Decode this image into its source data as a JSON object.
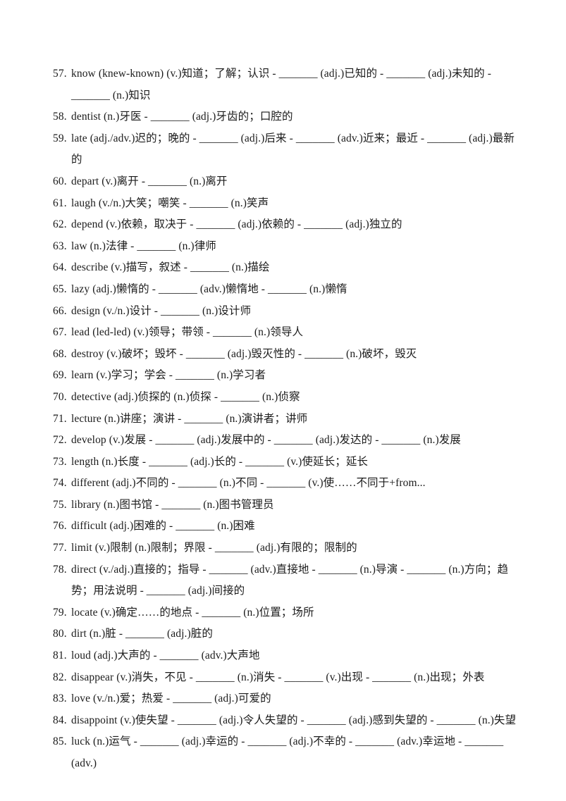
{
  "page": {
    "background_color": "#ffffff",
    "text_color": "#1b1b1b"
  },
  "worksheet": {
    "items": [
      {
        "num": "57.",
        "text": "know (knew-known) (v.)知道；了解；认识 - _______ (adj.)已知的 - _______ (adj.)未知的 - _______ (n.)知识"
      },
      {
        "num": "58.",
        "text": "dentist (n.)牙医 - _______ (adj.)牙齿的；口腔的"
      },
      {
        "num": "59.",
        "text": "late (adj./adv.)迟的；晚的 - _______ (adj.)后来 - _______ (adv.)近来；最近 - _______ (adj.)最新的"
      },
      {
        "num": "60.",
        "text": "depart (v.)离开 - _______ (n.)离开"
      },
      {
        "num": "61.",
        "text": "laugh (v./n.)大笑；嘲笑 - _______ (n.)笑声"
      },
      {
        "num": "62.",
        "text": "depend (v.)依赖，取决于 - _______ (adj.)依赖的 - _______ (adj.)独立的"
      },
      {
        "num": "63.",
        "text": "law (n.)法律 - _______ (n.)律师"
      },
      {
        "num": "64.",
        "text": "describe (v.)描写，叙述 - _______ (n.)描绘"
      },
      {
        "num": "65.",
        "text": "lazy (adj.)懒惰的 - _______ (adv.)懒惰地 - _______ (n.)懒惰"
      },
      {
        "num": "66.",
        "text": "design (v./n.)设计 - _______ (n.)设计师"
      },
      {
        "num": "67.",
        "text": "lead (led-led) (v.)领导；带领 - _______ (n.)领导人"
      },
      {
        "num": "68.",
        "text": "destroy (v.)破坏；毁坏 - _______ (adj.)毁灭性的 - _______ (n.)破坏，毁灭"
      },
      {
        "num": "69.",
        "text": "learn (v.)学习；学会 - _______ (n.)学习者"
      },
      {
        "num": "70.",
        "text": "detective (adj.)侦探的 (n.)侦探 - _______ (n.)侦察"
      },
      {
        "num": "71.",
        "text": "lecture (n.)讲座；演讲 - _______ (n.)演讲者；讲师"
      },
      {
        "num": "72.",
        "text": "develop (v.)发展 - _______ (adj.)发展中的 - _______ (adj.)发达的 - _______ (n.)发展"
      },
      {
        "num": "73.",
        "text": "length (n.)长度 - _______ (adj.)长的 - _______ (v.)使延长；延长"
      },
      {
        "num": "74.",
        "text": "different (adj.)不同的 - _______ (n.)不同 - _______ (v.)使……不同于+from..."
      },
      {
        "num": "75.",
        "text": "library (n.)图书馆 - _______ (n.)图书管理员"
      },
      {
        "num": "76.",
        "text": "difficult (adj.)困难的 - _______ (n.)困难"
      },
      {
        "num": "77.",
        "text": "limit (v.)限制 (n.)限制；界限 - _______ (adj.)有限的；限制的"
      },
      {
        "num": "78.",
        "text": "direct (v./adj.)直接的；指导 - _______ (adv.)直接地 - _______ (n.)导演 - _______ (n.)方向；趋势；用法说明 - _______ (adj.)间接的"
      },
      {
        "num": "79.",
        "text": "locate (v.)确定……的地点 - _______ (n.)位置；场所"
      },
      {
        "num": "80.",
        "text": "dirt (n.)脏 - _______ (adj.)脏的"
      },
      {
        "num": "81.",
        "text": "loud (adj.)大声的 - _______ (adv.)大声地"
      },
      {
        "num": "82.",
        "text": "disappear (v.)消失，不见 - _______ (n.)消失 - _______ (v.)出现 - _______ (n.)出现；外表"
      },
      {
        "num": "83.",
        "text": "love (v./n.)爱；热爱 - _______ (adj.)可爱的"
      },
      {
        "num": "84.",
        "text": "disappoint (v.)使失望 - _______ (adj.)令人失望的 - _______ (adj.)感到失望的 - _______ (n.)失望"
      },
      {
        "num": "85.",
        "text": "luck (n.)运气 - _______ (adj.)幸运的 - _______ (adj.)不幸的 - _______ (adv.)幸运地 - _______ (adv.)"
      }
    ]
  }
}
